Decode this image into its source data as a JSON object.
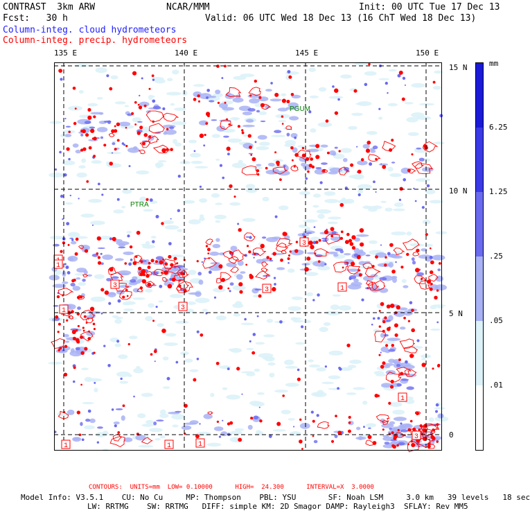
{
  "header": {
    "model": "CONTRAST  3km ARW",
    "forecast": "Fcst:   30 h",
    "source": "NCAR/MMM",
    "init": "Init: 00 UTC Tue 17 Dec 13",
    "valid": "Valid: 06 UTC Wed 18 Dec 13 (16 ChT Wed 18 Dec 13)",
    "field_cloud": "Column-integ. cloud hydrometeors",
    "field_precip": "Column-integ. precip. hydrometeors"
  },
  "axes": {
    "lon_labels": [
      "135 E",
      "140 E",
      "145 E",
      "150 E"
    ],
    "lat_labels": [
      "15 N",
      "10 N",
      "5 N",
      "0"
    ]
  },
  "colorbar": {
    "units": "mm",
    "levels": [
      "6.25",
      "1.25",
      ".25",
      ".05",
      ".01"
    ],
    "colors": [
      "#1a1ad8",
      "#3a3ae8",
      "#6a6af0",
      "#a8b2f4",
      "#dcf2f8",
      "#ffffff"
    ]
  },
  "map": {
    "cloud_colors": [
      "#dcf2f8",
      "#a8b2f4",
      "#6a6af0"
    ],
    "precip_color": "#ff0000",
    "station_color": "#008000",
    "stations": [
      "PGUM",
      "PTRA"
    ],
    "contour_label_values": [
      "1",
      "3",
      "3",
      "3",
      "3",
      "1",
      "1",
      "1",
      "1",
      "1",
      "3",
      "1",
      "1"
    ]
  },
  "footer": {
    "contours": "CONTOURS:  UNITS=mm  LOW= 0.10000      HIGH=  24.300      INTERVAL=X  3.0000",
    "model_line1": "Model Info: V3.5.1    CU: No Cu     MP: Thompson    PBL: YSU       SF: Noah LSM     3.0 km   39 levels   18 sec",
    "model_line2": "LW: RRTMG    SW: RRTMG   DIFF: simple KM: 2D Smagor DAMP: Rayleigh3  SFLAY: Rev MM5"
  }
}
